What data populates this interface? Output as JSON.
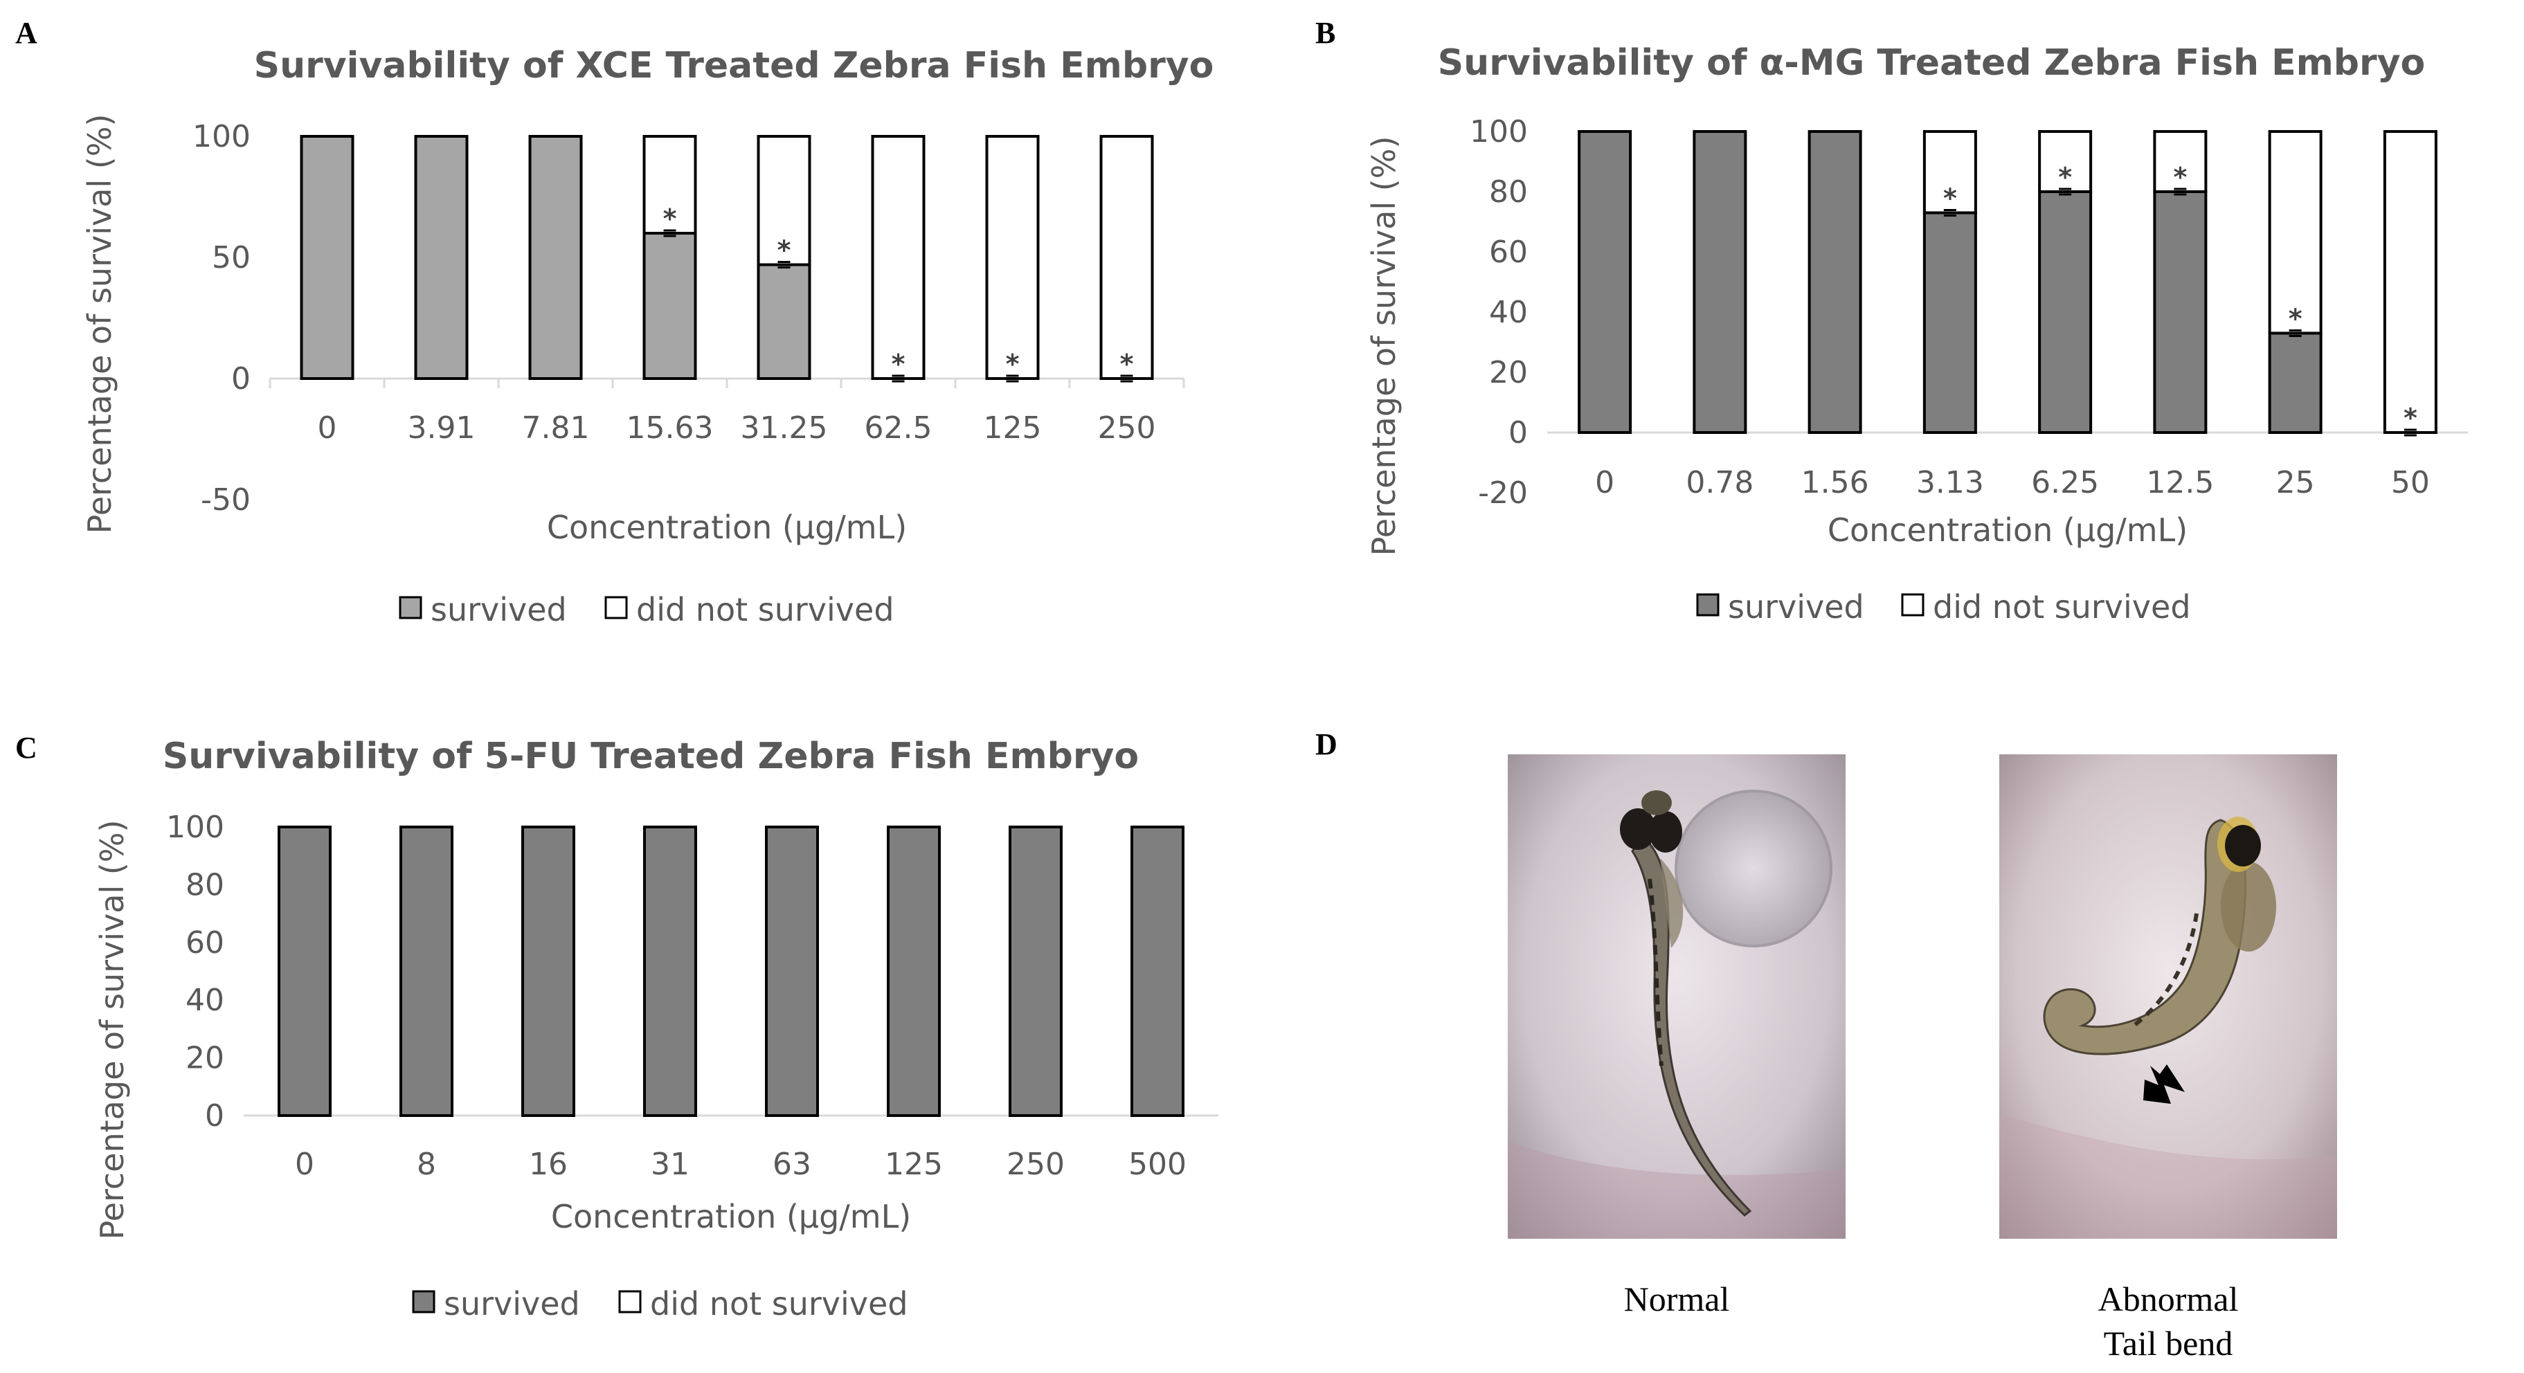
{
  "panels": {
    "a": "A",
    "b": "B",
    "c": "C",
    "d": "D"
  },
  "chart_data": [
    {
      "id": "A",
      "type": "bar",
      "stacked": true,
      "title": "Survivability of XCE Treated Zebra Fish Embryo",
      "xlabel": "Concentration (µg/mL)",
      "ylabel": "Percentage of survival (%)",
      "ylim": [
        -50,
        100
      ],
      "yticks": [
        100,
        50,
        0,
        -50
      ],
      "categories": [
        "0",
        "3.91",
        "7.81",
        "15.63",
        "31.25",
        "62.5",
        "125",
        "250"
      ],
      "series": [
        {
          "name": "survived",
          "values": [
            100,
            100,
            100,
            60,
            47,
            0,
            0,
            0
          ],
          "color": "#a6a6a6"
        },
        {
          "name": "did not survived",
          "values": [
            0,
            0,
            0,
            40,
            53,
            100,
            100,
            100
          ],
          "color": "#ffffff"
        }
      ],
      "significance": [
        "",
        "",
        "",
        "*",
        "*",
        "*",
        "*",
        "*"
      ]
    },
    {
      "id": "B",
      "type": "bar",
      "stacked": true,
      "title": "Survivability of α-MG Treated Zebra Fish Embryo",
      "xlabel": "Concentration (µg/mL)",
      "ylabel": "Percentage of survival (%)",
      "ylim": [
        -20,
        100
      ],
      "yticks": [
        100,
        80,
        60,
        40,
        20,
        0,
        -20
      ],
      "categories": [
        "0",
        "0.78",
        "1.56",
        "3.13",
        "6.25",
        "12.5",
        "25",
        "50"
      ],
      "series": [
        {
          "name": "survived",
          "values": [
            100,
            100,
            100,
            73,
            80,
            80,
            33,
            0
          ],
          "color": "#7f7f7f"
        },
        {
          "name": "did not survived",
          "values": [
            0,
            0,
            0,
            27,
            20,
            20,
            67,
            100
          ],
          "color": "#ffffff"
        }
      ],
      "significance": [
        "",
        "",
        "",
        "*",
        "*",
        "*",
        "*",
        "*"
      ]
    },
    {
      "id": "C",
      "type": "bar",
      "stacked": true,
      "title": "Survivability of 5-FU Treated Zebra Fish Embryo",
      "xlabel": "Concentration (µg/mL)",
      "ylabel": "Percentage of survival (%)",
      "ylim": [
        0,
        100
      ],
      "yticks": [
        100,
        80,
        60,
        40,
        20,
        0
      ],
      "categories": [
        "0",
        "8",
        "16",
        "31",
        "63",
        "125",
        "250",
        "500"
      ],
      "series": [
        {
          "name": "survived",
          "values": [
            100,
            100,
            100,
            100,
            100,
            100,
            100,
            100
          ],
          "color": "#7f7f7f"
        },
        {
          "name": "did not survived",
          "values": [
            0,
            0,
            0,
            0,
            0,
            0,
            0,
            0
          ],
          "color": "#ffffff"
        }
      ],
      "significance": [
        "",
        "",
        "",
        "",
        "",
        "",
        "",
        ""
      ]
    }
  ],
  "images": {
    "normal_caption": "Normal",
    "abnormal_caption_line1": "Abnormal",
    "abnormal_caption_line2": "Tail bend"
  }
}
